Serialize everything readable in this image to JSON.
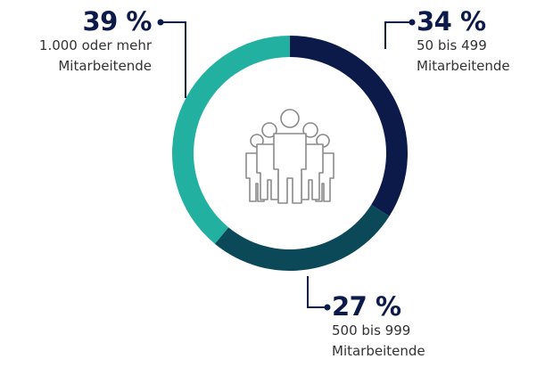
{
  "chart_data": {
    "type": "donut",
    "categories": [
      "50 bis 499 Mitarbeitende",
      "500 bis 999 Mitarbeitende",
      "1.000 oder mehr Mitarbeitende"
    ],
    "values": [
      34,
      27,
      39
    ],
    "value_labels": [
      "34 %",
      "27 %",
      "39 %"
    ],
    "colors": [
      "#0c1a4a",
      "#0b4858",
      "#22b1a1"
    ]
  }
}
